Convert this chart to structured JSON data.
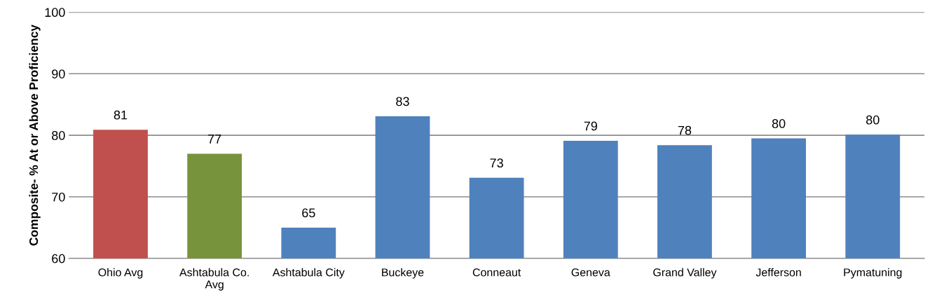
{
  "chart_data": {
    "type": "bar",
    "ylabel": "Composite- % At or Above Proficiency",
    "categories": [
      "Ohio Avg",
      "Ashtabula Co.\nAvg",
      "Ashtabula City",
      "Buckeye",
      "Conneaut",
      "Geneva",
      "Grand Valley",
      "Jefferson",
      "Pymatuning"
    ],
    "values": [
      80.9,
      77.0,
      65.0,
      83.1,
      73.1,
      79.1,
      78.4,
      79.5,
      80.1
    ],
    "value_labels": [
      "81",
      "77",
      "65",
      "83",
      "73",
      "79",
      "78",
      "80",
      "80"
    ],
    "colors": [
      "#c0504d",
      "#77933c",
      "#4f81bd",
      "#4f81bd",
      "#4f81bd",
      "#4f81bd",
      "#4f81bd",
      "#4f81bd",
      "#4f81bd"
    ],
    "ylim": [
      60,
      100
    ],
    "yticks": [
      60,
      70,
      80,
      90,
      100
    ],
    "grid": "y"
  }
}
